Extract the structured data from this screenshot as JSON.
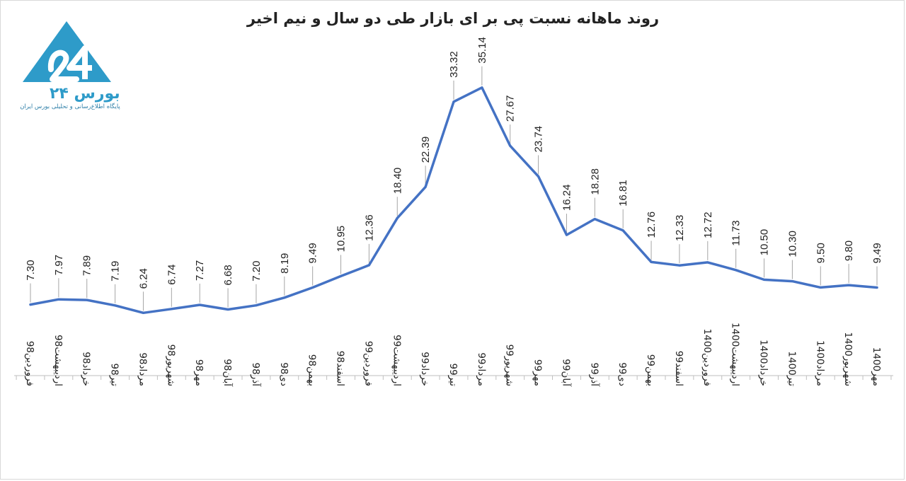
{
  "chart_data": {
    "type": "line",
    "title": "روند ماهانه نسبت پی بر ای بازار طی دو سال و نیم اخیر",
    "xlabel": "",
    "ylabel": "",
    "categories": [
      "فروردین98",
      "اردیبهشت98",
      "خرداد98",
      "تیر98",
      "مرداد98",
      "شهریور98",
      "مهر98",
      "آبان98",
      "آذر98",
      "دی98",
      "بهمن98",
      "اسفند98",
      "فروردین99",
      "اردیبهشت99",
      "خرداد99",
      "تیر99",
      "مرداد99",
      "شهریور99",
      "مهر99",
      "آبان99",
      "آذر99",
      "دی99",
      "بهمن99",
      "اسفند99",
      "فروردین1400",
      "اردیبهشت1400",
      "خرداد1400",
      "تیر1400",
      "مرداد1400",
      "شهریور1400",
      "مهر1400"
    ],
    "series": [
      {
        "color": "#4472c4",
        "values": [
          7.3,
          7.97,
          7.89,
          7.19,
          6.24,
          6.74,
          7.27,
          6.68,
          7.2,
          8.19,
          9.49,
          10.95,
          12.36,
          18.4,
          22.39,
          33.32,
          35.14,
          27.67,
          23.74,
          16.24,
          18.28,
          16.81,
          12.76,
          12.33,
          12.72,
          11.73,
          10.5,
          10.3,
          9.5,
          9.8,
          9.49
        ],
        "labels": [
          "7.30",
          "7.97",
          "7.89",
          "7.19",
          "6.24",
          "6.74",
          "7.27",
          "6.68",
          "7.20",
          "8.19",
          "9.49",
          "10.95",
          "12.36",
          "18.40",
          "22.39",
          "33.32",
          "35.14",
          "27.67",
          "23.74",
          "16.24",
          "18.28",
          "16.81",
          "12.76",
          "12.33",
          "12.72",
          "11.73",
          "10.50",
          "10.30",
          "9.50",
          "9.80",
          "9.49"
        ]
      }
    ],
    "grid": false,
    "legend": "none"
  },
  "logo": {
    "name": "بورس ۲۴",
    "tagline": "پایگاه اطلاع‌رسانی و تحلیلی بورس ایران",
    "color": "#2e9bc9"
  },
  "colors": {
    "line": "#4472c4",
    "leader": "#a6a6a6",
    "axis": "#bfbfbf"
  }
}
